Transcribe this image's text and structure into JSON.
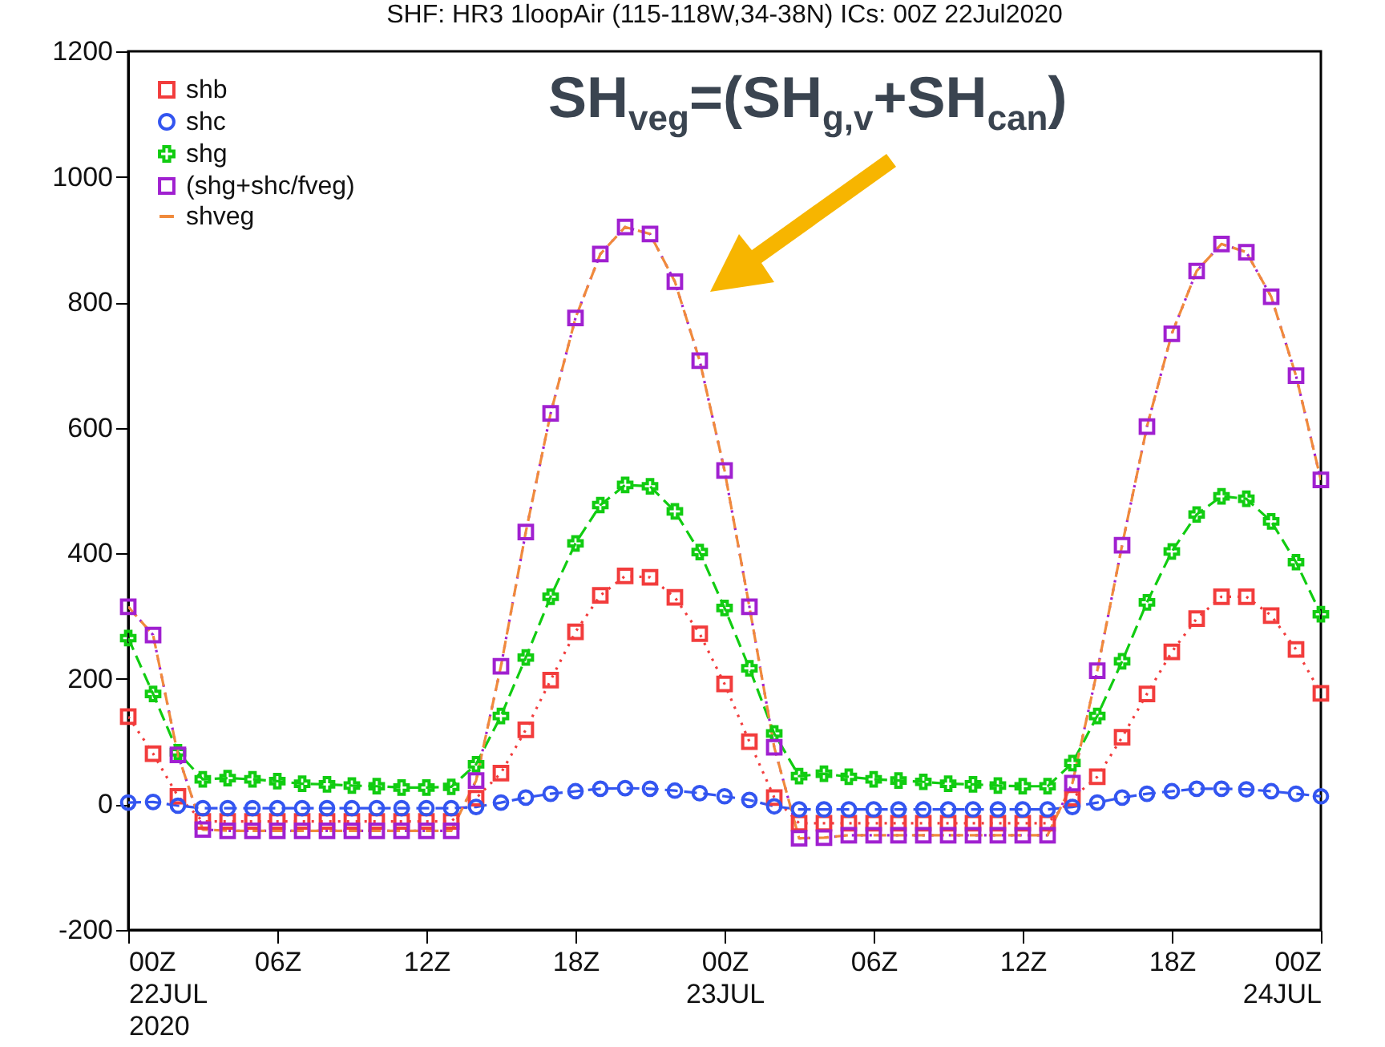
{
  "chart_data": {
    "type": "line",
    "title": "SHF:   HR3 1loopAir   (115-118W,34-38N)   ICs: 00Z 22Jul2020",
    "annotations": [
      "SH$_{veg}$=(SH$_{g,v}$+SH$_{can}$)"
    ],
    "x": [
      "2020-07-22T00:00",
      "2020-07-22T01:00",
      "2020-07-22T02:00",
      "2020-07-22T03:00",
      "2020-07-22T04:00",
      "2020-07-22T05:00",
      "2020-07-22T06:00",
      "2020-07-22T07:00",
      "2020-07-22T08:00",
      "2020-07-22T09:00",
      "2020-07-22T10:00",
      "2020-07-22T11:00",
      "2020-07-22T12:00",
      "2020-07-22T13:00",
      "2020-07-22T14:00",
      "2020-07-22T15:00",
      "2020-07-22T16:00",
      "2020-07-22T17:00",
      "2020-07-22T18:00",
      "2020-07-22T19:00",
      "2020-07-22T20:00",
      "2020-07-22T21:00",
      "2020-07-22T22:00",
      "2020-07-22T23:00",
      "2020-07-23T00:00",
      "2020-07-23T01:00",
      "2020-07-23T02:00",
      "2020-07-23T03:00",
      "2020-07-23T04:00",
      "2020-07-23T05:00",
      "2020-07-23T06:00",
      "2020-07-23T07:00",
      "2020-07-23T08:00",
      "2020-07-23T09:00",
      "2020-07-23T10:00",
      "2020-07-23T11:00",
      "2020-07-23T12:00",
      "2020-07-23T13:00",
      "2020-07-23T14:00",
      "2020-07-23T15:00",
      "2020-07-23T16:00",
      "2020-07-23T17:00",
      "2020-07-23T18:00",
      "2020-07-23T19:00",
      "2020-07-23T20:00",
      "2020-07-23T21:00",
      "2020-07-23T22:00",
      "2020-07-23T23:00",
      "2020-07-24T00:00"
    ],
    "series": [
      {
        "name": "shb",
        "color": "#f23c3c",
        "marker": "square",
        "line_style": "dotted",
        "values": [
          140,
          81,
          13,
          -27,
          -27,
          -27,
          -27,
          -27,
          -27,
          -27,
          -27,
          -27,
          -27,
          -27,
          10,
          50,
          119,
          198,
          275,
          333,
          364,
          362,
          330,
          272,
          192,
          100,
          11,
          -30,
          -30,
          -30,
          -30,
          -30,
          -30,
          -30,
          -30,
          -30,
          -30,
          -30,
          10,
          44,
          107,
          176,
          243,
          296,
          331,
          331,
          301,
          247,
          177
        ]
      },
      {
        "name": "shc",
        "color": "#3355f0",
        "marker": "circle",
        "line_style": "dashed",
        "values": [
          3,
          4,
          -2,
          -6,
          -6,
          -6,
          -6,
          -6,
          -6,
          -6,
          -6,
          -6,
          -6,
          -6,
          -4,
          3,
          11,
          17,
          21,
          25,
          26,
          25,
          22,
          18,
          13,
          7,
          -3,
          -8,
          -8,
          -8,
          -8,
          -8,
          -8,
          -8,
          -8,
          -8,
          -8,
          -8,
          -4,
          3,
          11,
          17,
          21,
          25,
          25,
          24,
          21,
          17,
          13
        ]
      },
      {
        "name": "shg",
        "color": "#11cc11",
        "marker": "cross",
        "line_style": "dashed",
        "values": [
          265,
          176,
          83,
          40,
          42,
          40,
          37,
          33,
          32,
          30,
          29,
          27,
          27,
          28,
          64,
          141,
          234,
          331,
          416,
          477,
          509,
          507,
          467,
          402,
          313,
          217,
          113,
          45,
          49,
          44,
          40,
          38,
          36,
          33,
          32,
          30,
          29,
          29,
          66,
          141,
          228,
          322,
          403,
          462,
          491,
          487,
          451,
          386,
          303
        ]
      },
      {
        "name": "(shg+shc/fveg)",
        "color": "#a020d0",
        "marker": "square",
        "line_style": "dotted",
        "values": [
          315,
          270,
          79,
          -40,
          -42,
          -42,
          -42,
          -42,
          -42,
          -42,
          -42,
          -42,
          -42,
          -42,
          38,
          220,
          434,
          623,
          775,
          877,
          920,
          909,
          833,
          707,
          532,
          315,
          91,
          -54,
          -53,
          -49,
          -49,
          -49,
          -49,
          -49,
          -49,
          -49,
          -49,
          -49,
          34,
          213,
          413,
          602,
          750,
          850,
          893,
          880,
          809,
          683,
          517
        ]
      },
      {
        "name": "shveg",
        "color": "#f08a3c",
        "marker": "none",
        "line_style": "dashed",
        "values": [
          315,
          270,
          79,
          -40,
          -42,
          -42,
          -42,
          -42,
          -42,
          -42,
          -42,
          -42,
          -42,
          -42,
          38,
          220,
          434,
          623,
          775,
          877,
          920,
          909,
          833,
          707,
          532,
          315,
          91,
          -54,
          -53,
          -49,
          -49,
          -49,
          -49,
          -49,
          -49,
          -49,
          -49,
          -49,
          34,
          213,
          413,
          602,
          750,
          850,
          893,
          880,
          809,
          683,
          517
        ]
      }
    ],
    "xlim": [
      "2020-07-22T00:00",
      "2020-07-24T00:00"
    ],
    "xticks": [
      {
        "value": "2020-07-22T00:00",
        "label": "00Z\n22JUL\n2020"
      },
      {
        "value": "2020-07-22T06:00",
        "label": "06Z"
      },
      {
        "value": "2020-07-22T12:00",
        "label": "12Z"
      },
      {
        "value": "2020-07-22T18:00",
        "label": "18Z"
      },
      {
        "value": "2020-07-23T00:00",
        "label": "00Z\n23JUL"
      },
      {
        "value": "2020-07-23T06:00",
        "label": "06Z"
      },
      {
        "value": "2020-07-23T12:00",
        "label": "12Z"
      },
      {
        "value": "2020-07-23T18:00",
        "label": "18Z"
      },
      {
        "value": "2020-07-24T00:00",
        "label": "00Z\n24JUL"
      }
    ],
    "ylim": [
      -200,
      1200
    ],
    "yticks": [
      -200,
      0,
      200,
      400,
      600,
      800,
      1000,
      1200
    ],
    "legend": "top left"
  }
}
